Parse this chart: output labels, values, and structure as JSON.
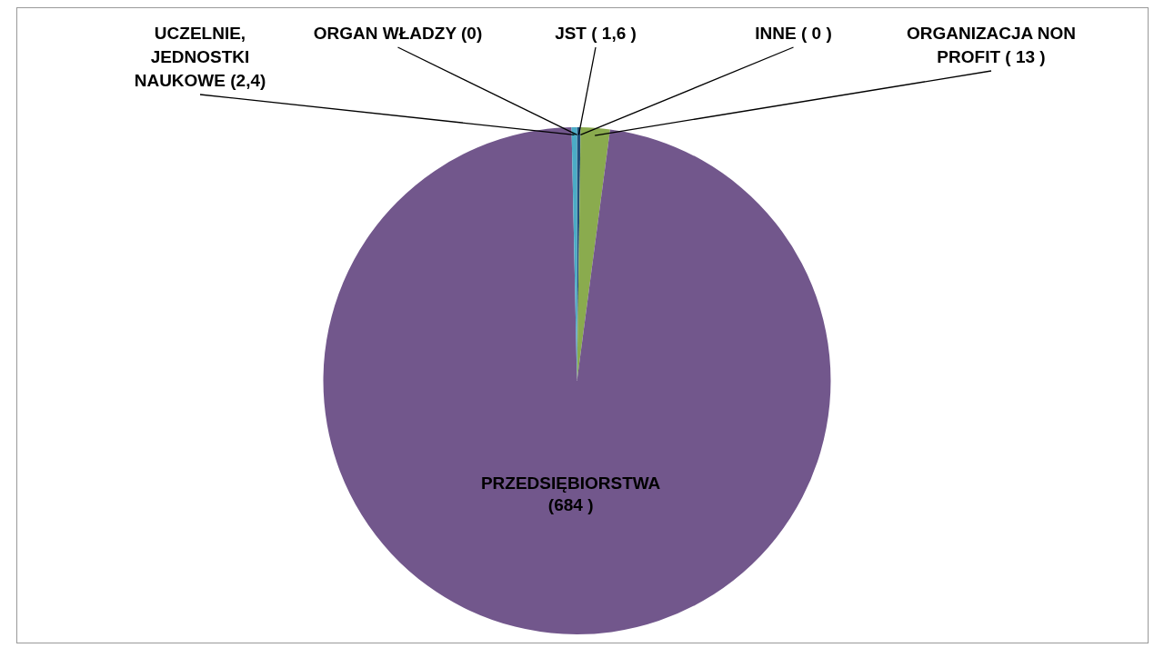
{
  "chart_data": {
    "type": "pie",
    "categories": [
      "ORGAN WŁADZY",
      "JST",
      "INNE",
      "ORGANIZACJA NON PROFIT",
      "PRZEDSIĘBIORSTWA",
      "UCZELNIE, JEDNOSTKI NAUKOWE"
    ],
    "values": [
      0,
      1.6,
      0,
      13,
      684,
      2.4
    ],
    "value_labels": [
      "(0)",
      "( 1,6 )",
      "( 0 )",
      "( 13 )",
      "(684 )",
      "(2,4)"
    ],
    "colors": [
      "#c0504d",
      "#1f4e79",
      "#f79646",
      "#8aab4e",
      "#72578c",
      "#4bacc6"
    ]
  }
}
